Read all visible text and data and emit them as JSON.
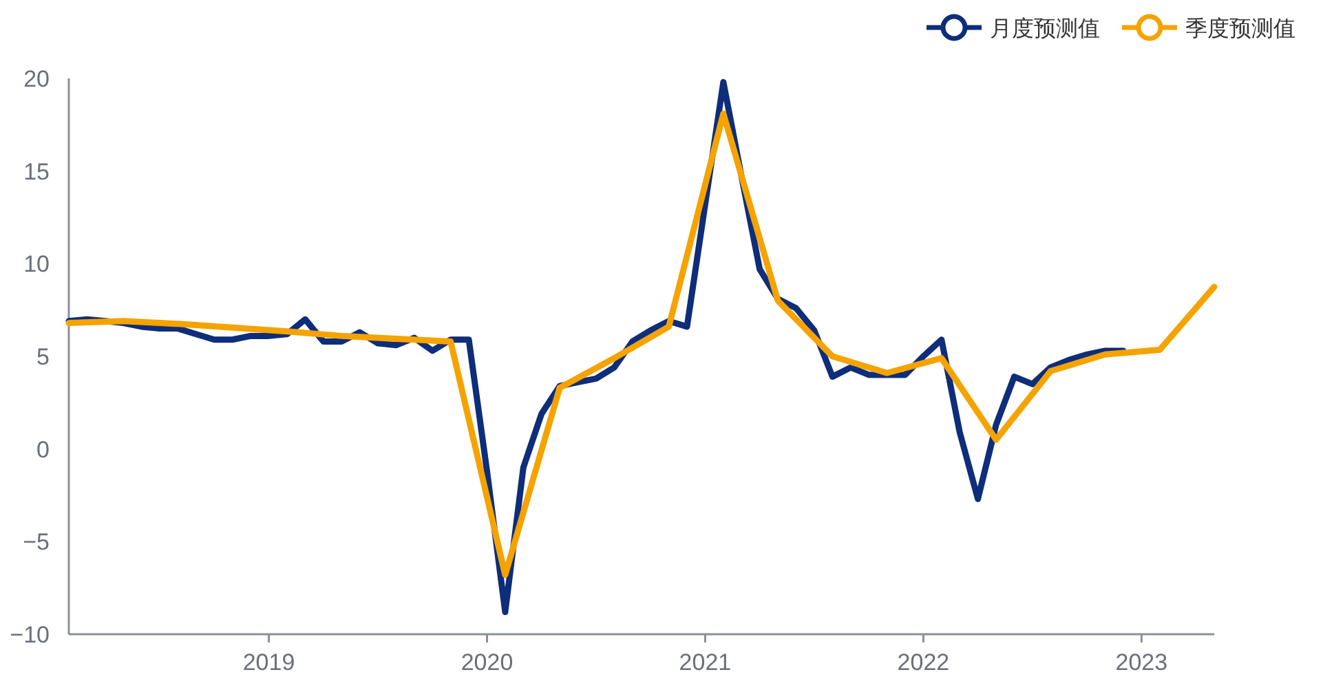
{
  "chart_data": {
    "type": "line",
    "xlim": [
      "2018-02-01",
      "2023-05-01"
    ],
    "xticks": [
      {
        "value": "2019-01-01",
        "label": "2019"
      },
      {
        "value": "2020-01-01",
        "label": "2020"
      },
      {
        "value": "2021-01-01",
        "label": "2021"
      },
      {
        "value": "2022-01-01",
        "label": "2022"
      },
      {
        "value": "2023-01-01",
        "label": "2023"
      }
    ],
    "ylim": [
      -10,
      20
    ],
    "yticks": [
      -10,
      -5,
      0,
      5,
      10,
      15,
      20
    ],
    "grid": false,
    "legend": "top right",
    "line_style": "solid",
    "series": [
      {
        "name": "月度预测值",
        "color": "#0e2d7a",
        "x": [
          "2018-02",
          "2018-03",
          "2018-04",
          "2018-05",
          "2018-06",
          "2018-07",
          "2018-08",
          "2018-09",
          "2018-10",
          "2018-11",
          "2018-12",
          "2019-01",
          "2019-02",
          "2019-03",
          "2019-04",
          "2019-05",
          "2019-06",
          "2019-07",
          "2019-08",
          "2019-09",
          "2019-10",
          "2019-11",
          "2019-12",
          "2020-01",
          "2020-02",
          "2020-03",
          "2020-04",
          "2020-05",
          "2020-06",
          "2020-07",
          "2020-08",
          "2020-09",
          "2020-10",
          "2020-11",
          "2020-12",
          "2021-01",
          "2021-02",
          "2021-03",
          "2021-04",
          "2021-05",
          "2021-06",
          "2021-07",
          "2021-08",
          "2021-09",
          "2021-10",
          "2021-11",
          "2021-12",
          "2022-01",
          "2022-02",
          "2022-03",
          "2022-04",
          "2022-05",
          "2022-06",
          "2022-07",
          "2022-08",
          "2022-09",
          "2022-10",
          "2022-11",
          "2022-12"
        ],
        "values": [
          6.9,
          7.0,
          6.9,
          6.8,
          6.6,
          6.5,
          6.5,
          6.2,
          5.9,
          5.9,
          6.1,
          6.1,
          6.2,
          7.0,
          5.8,
          5.8,
          6.3,
          5.7,
          5.6,
          6.0,
          5.3,
          5.9,
          5.9,
          -1.2,
          -8.8,
          -1.0,
          1.9,
          3.4,
          3.6,
          3.8,
          4.4,
          5.8,
          6.4,
          6.9,
          6.6,
          13.2,
          19.8,
          14.7,
          9.7,
          8.1,
          7.6,
          6.4,
          3.9,
          4.4,
          4.0,
          4.0,
          4.0,
          5.0,
          5.9,
          0.9,
          -2.7,
          1.3,
          3.9,
          3.5,
          4.4,
          4.8,
          5.1,
          5.3,
          5.3
        ]
      },
      {
        "name": "季度预测值",
        "color": "#f5a300",
        "x": [
          "2018-02",
          "2018-05",
          "2018-08",
          "2018-11",
          "2019-02",
          "2019-05",
          "2019-08",
          "2019-11",
          "2020-02",
          "2020-05",
          "2020-08",
          "2020-11",
          "2021-02",
          "2021-05",
          "2021-08",
          "2021-11",
          "2022-02",
          "2022-05",
          "2022-08",
          "2022-11",
          "2023-02",
          "2023-05"
        ],
        "values": [
          6.8,
          6.9,
          6.75,
          6.55,
          6.35,
          6.1,
          5.95,
          5.8,
          -6.8,
          3.3,
          4.9,
          6.6,
          18.1,
          8.0,
          5.0,
          4.1,
          4.9,
          0.5,
          4.2,
          5.1,
          5.35,
          8.75
        ]
      }
    ]
  }
}
